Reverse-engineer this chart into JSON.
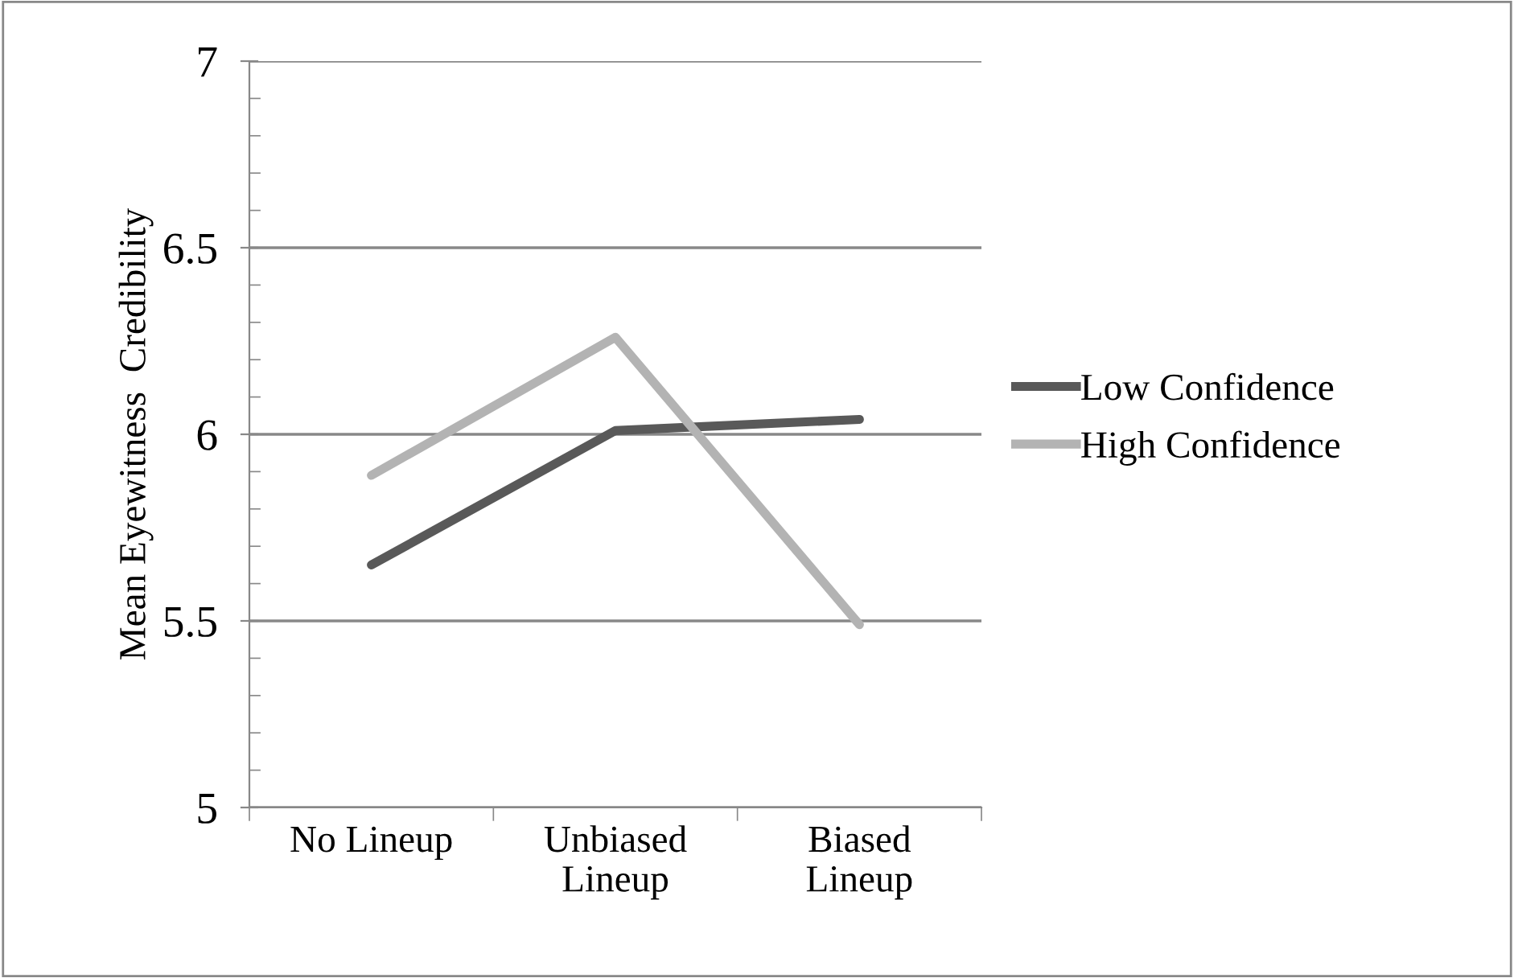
{
  "chart_data": {
    "type": "line",
    "ylabel": "Mean Eyewitness  Credibility",
    "categories": [
      "No Lineup",
      "Unbiased\nLineup",
      "Biased\nLineup"
    ],
    "series": [
      {
        "name": "Low Confidence",
        "color": "#595959",
        "values": [
          5.65,
          6.01,
          6.04
        ]
      },
      {
        "name": "High Confidence",
        "color": "#b3b3b3",
        "values": [
          5.89,
          6.26,
          5.49
        ]
      }
    ],
    "ylim": [
      5,
      7
    ],
    "yticks": [
      5,
      5.5,
      6,
      6.5,
      7
    ],
    "grid": "y",
    "legend": "right",
    "marker": "none",
    "line_style": "solid"
  }
}
